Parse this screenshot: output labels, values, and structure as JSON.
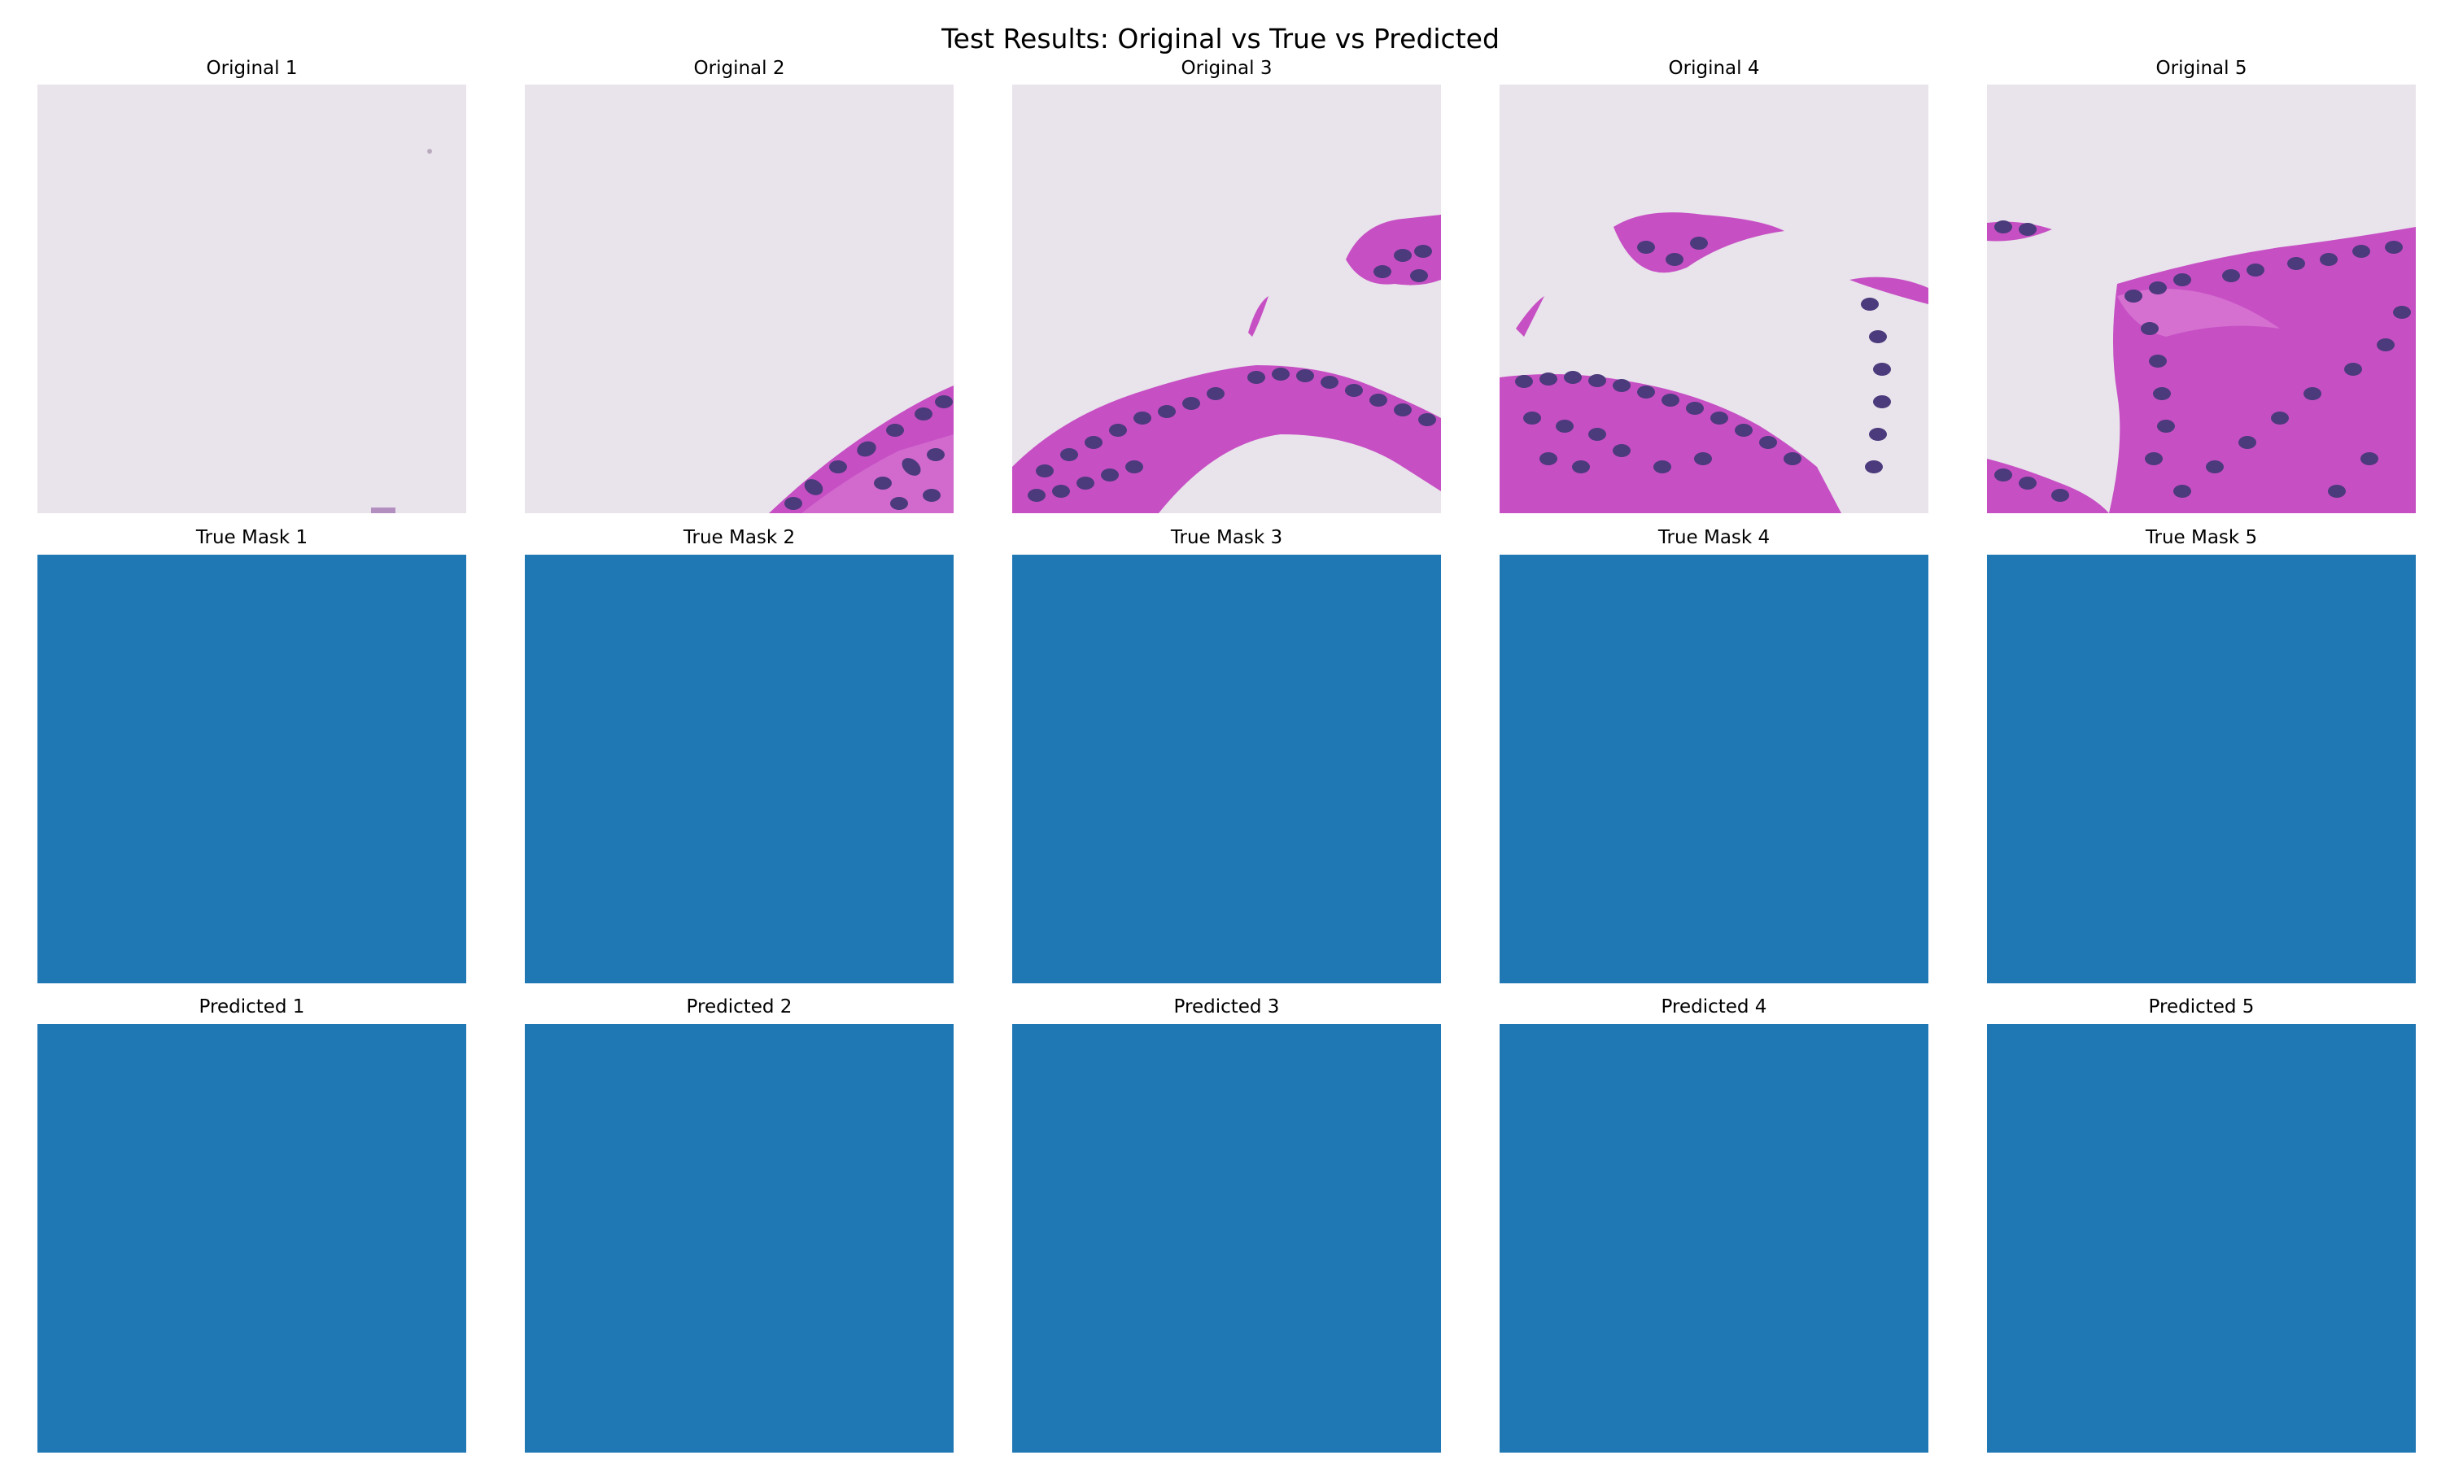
{
  "figure": {
    "suptitle": "Test Results: Original vs True vs Predicted"
  },
  "rows": [
    {
      "kind": "original",
      "panels": [
        {
          "title": "Original 1",
          "tissue": "none"
        },
        {
          "title": "Original 2",
          "tissue": "bottom-right-corner"
        },
        {
          "title": "Original 3",
          "tissue": "arch-bottom-with-fragment-top-right"
        },
        {
          "title": "Original 4",
          "tissue": "band-bottom-with-fragment-top"
        },
        {
          "title": "Original 5",
          "tissue": "large-mass-right"
        }
      ]
    },
    {
      "kind": "true-mask",
      "panels": [
        {
          "title": "True Mask 1"
        },
        {
          "title": "True Mask 2"
        },
        {
          "title": "True Mask 3"
        },
        {
          "title": "True Mask 4"
        },
        {
          "title": "True Mask 5"
        }
      ]
    },
    {
      "kind": "predicted-mask",
      "panels": [
        {
          "title": "Predicted 1"
        },
        {
          "title": "Predicted 2"
        },
        {
          "title": "Predicted 3"
        },
        {
          "title": "Predicted 4"
        },
        {
          "title": "Predicted 5"
        }
      ]
    }
  ],
  "colors": {
    "background": "#e9e3eb",
    "stroma": "#c64fc4",
    "stroma_light": "#db7dd6",
    "nucleus": "#4b3a7c",
    "mask": "#1f77b4"
  }
}
